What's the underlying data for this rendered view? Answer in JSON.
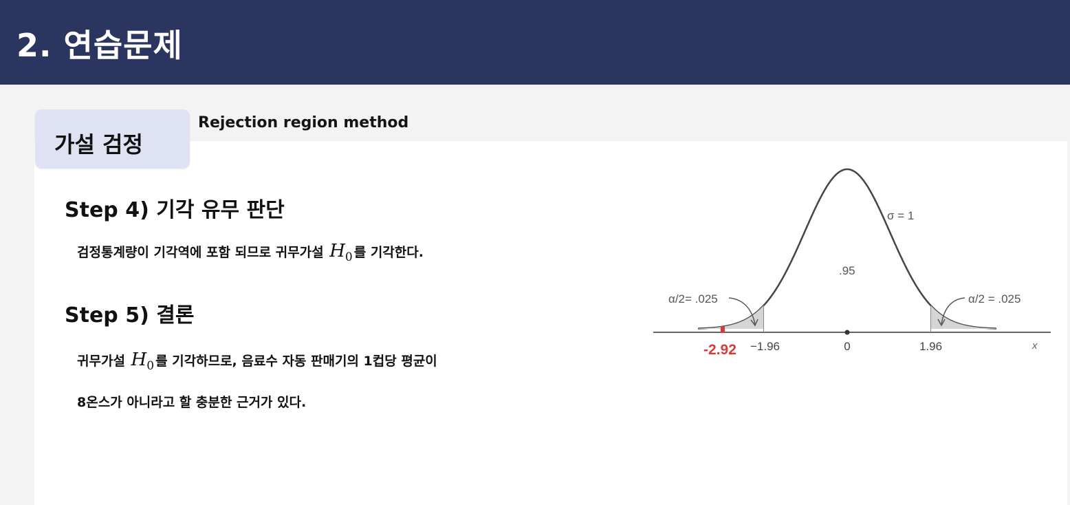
{
  "header": {
    "title": "2. 연습문제"
  },
  "tab": {
    "label": "가설 검정"
  },
  "method": "Rejection region method",
  "step4": {
    "title": "Step 4) 기각 유무 판단",
    "line_before": "검정통계량이 기각역에 포함 되므로 귀무가설",
    "symbol": "H",
    "subscript": "0",
    "line_after": "를 기각한다."
  },
  "step5": {
    "title": "Step 5) 결론",
    "line1_before": "귀무가설",
    "symbol": "H",
    "subscript": "0",
    "line1_after": "를 기각하므로, 음료수 자동 판매기의 1컵당 평균이",
    "line2": "8온스가 아니라고 할 충분한 근거가 있다."
  },
  "chart_data": {
    "type": "normal-distribution",
    "mean": 0,
    "sigma": 1,
    "sigma_label": "σ = 1",
    "center_area_label": ".95",
    "left_tail_label": "α/2= .025",
    "right_tail_label": "α/2 = .025",
    "critical_values": [
      -1.96,
      1.96
    ],
    "tick_labels": [
      "−1.96",
      "0",
      "1.96"
    ],
    "x_axis_label": "x",
    "test_statistic": -2.92,
    "test_statistic_label": "-2.92",
    "test_statistic_color": "#d63b3b",
    "xlim": [
      -3.5,
      3.5
    ]
  }
}
